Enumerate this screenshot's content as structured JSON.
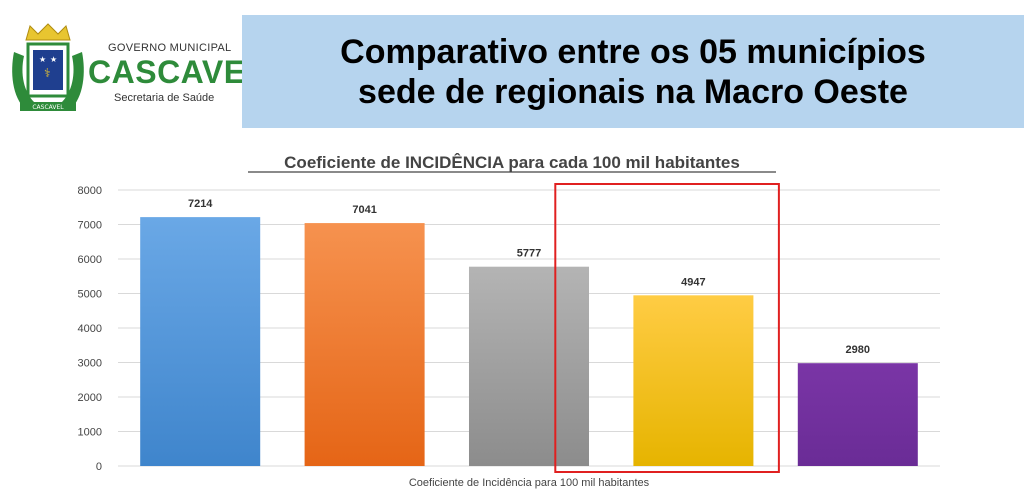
{
  "header": {
    "logo": {
      "government": "GOVERNO MUNICIPAL",
      "city": "CASCAVEL",
      "department": "Secretaria de Saúde",
      "badge_text": "CASCAVEL",
      "colors": {
        "green": "#2e8b3a",
        "gold": "#e8c530",
        "blue": "#1f3f8f"
      }
    },
    "title_line1": "Comparativo entre os 05 municípios",
    "title_line2": "sede de regionais na Macro Oeste",
    "title_bg": "#b6d4ee"
  },
  "chart_data": {
    "type": "bar",
    "title": "Coeficiente de INCIDÊNCIA para cada 100 mil habitantes",
    "xlabel": "Coeficiente de Incidência para 100 mil habitantes",
    "ylabel": "",
    "ylim": [
      0,
      8000
    ],
    "yticks": [
      0,
      1000,
      2000,
      3000,
      4000,
      5000,
      6000,
      7000,
      8000
    ],
    "grid": true,
    "values": [
      7214,
      7041,
      5777,
      4947,
      2980
    ],
    "colors": [
      [
        "#6aa8e6",
        "#3f85cc"
      ],
      [
        "#f6924f",
        "#e56516"
      ],
      [
        "#b4b4b4",
        "#8c8c8c"
      ],
      [
        "#ffcc44",
        "#e6b400"
      ],
      [
        "#7a35a6",
        "#6a2c96"
      ]
    ],
    "highlight_index": 3,
    "highlight_color": "#e02020"
  }
}
